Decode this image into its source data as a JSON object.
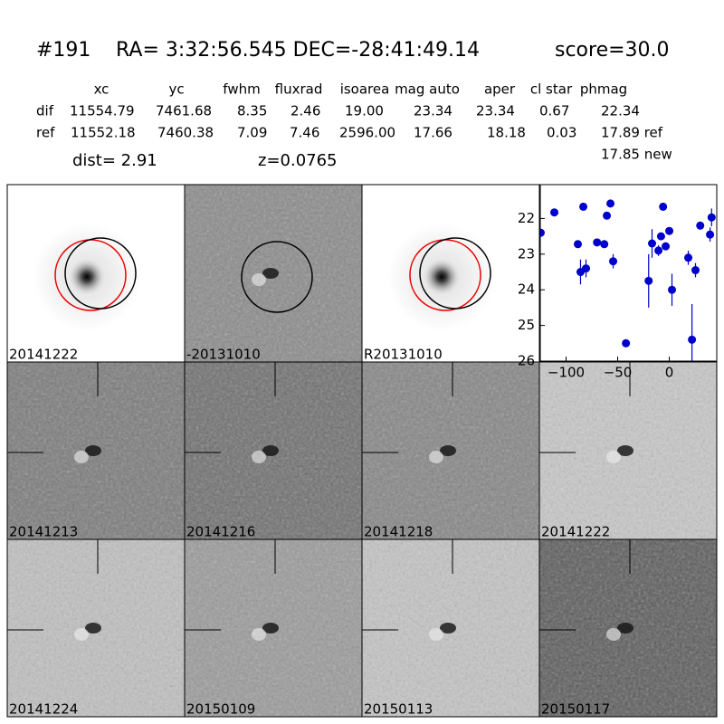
{
  "header": {
    "id": "#191",
    "coords": "RA= 3:32:56.545 DEC=-28:41:49.14",
    "score": "score=30.0"
  },
  "table": {
    "columns": [
      "xc",
      "yc",
      "fwhm",
      "fluxrad",
      "isoarea",
      "mag auto",
      "aper",
      "cl star",
      "phmag"
    ],
    "rows": [
      [
        "dif",
        "11554.79",
        "7461.68",
        "8.35",
        "2.46",
        "19.00",
        "23.34",
        "23.34",
        "0.67",
        "22.34"
      ],
      [
        "ref",
        "11552.18",
        "7460.38",
        "7.09",
        "7.46",
        "2596.00",
        "17.66",
        "18.18",
        "0.03",
        "17.89 ref"
      ]
    ],
    "extra": "17.85 new"
  },
  "dist": "dist=  2.91",
  "z": "z=0.0765",
  "stamps": [
    {
      "label": "20141222"
    },
    {
      "label": "-20131010"
    },
    {
      "label": "R20131010"
    },
    {
      "label": "20141213"
    },
    {
      "label": "20141216"
    },
    {
      "label": "20141218"
    },
    {
      "label": "20141222",
      "color": "#ff0000"
    },
    {
      "label": "20141224"
    },
    {
      "label": "20150109"
    },
    {
      "label": "20150113"
    },
    {
      "label": "20150117"
    }
  ],
  "chart_data": {
    "type": "scatter",
    "color": "#0000cc",
    "x": [
      -124.6,
      -111.4,
      -88.6,
      -86,
      -83.3,
      -80.7,
      -70,
      -63,
      -60.5,
      -57,
      -54.4,
      -42,
      -20,
      -16.7,
      -10.5,
      -8,
      -6,
      -3.5,
      0,
      2.6,
      18.4,
      22,
      25.4,
      30,
      39.5,
      41
    ],
    "y": [
      22.4,
      21.83,
      22.72,
      23.5,
      21.67,
      23.4,
      22.67,
      22.72,
      21.92,
      21.58,
      23.2,
      25.5,
      23.75,
      22.7,
      22.9,
      22.5,
      21.67,
      22.78,
      22.35,
      24.0,
      23.1,
      25.4,
      23.45,
      22.2,
      22.45,
      21.97
    ],
    "errors": [
      0.05,
      0.05,
      0.1,
      0.35,
      0.05,
      0.25,
      0.1,
      0.1,
      0.05,
      0.05,
      0.2,
      0.1,
      0.75,
      0.4,
      0.15,
      0.1,
      0.05,
      0.1,
      0.1,
      0.45,
      0.2,
      1.0,
      0.2,
      0.1,
      0.2,
      0.25
    ],
    "xlim": [
      -125,
      46
    ],
    "ylim": [
      26,
      21.05
    ],
    "xticks": [
      {
        "value": -100,
        "label": "−100"
      },
      {
        "value": -50,
        "label": "−50"
      },
      0
    ],
    "yticks": [
      22,
      23,
      24,
      25,
      26
    ]
  }
}
